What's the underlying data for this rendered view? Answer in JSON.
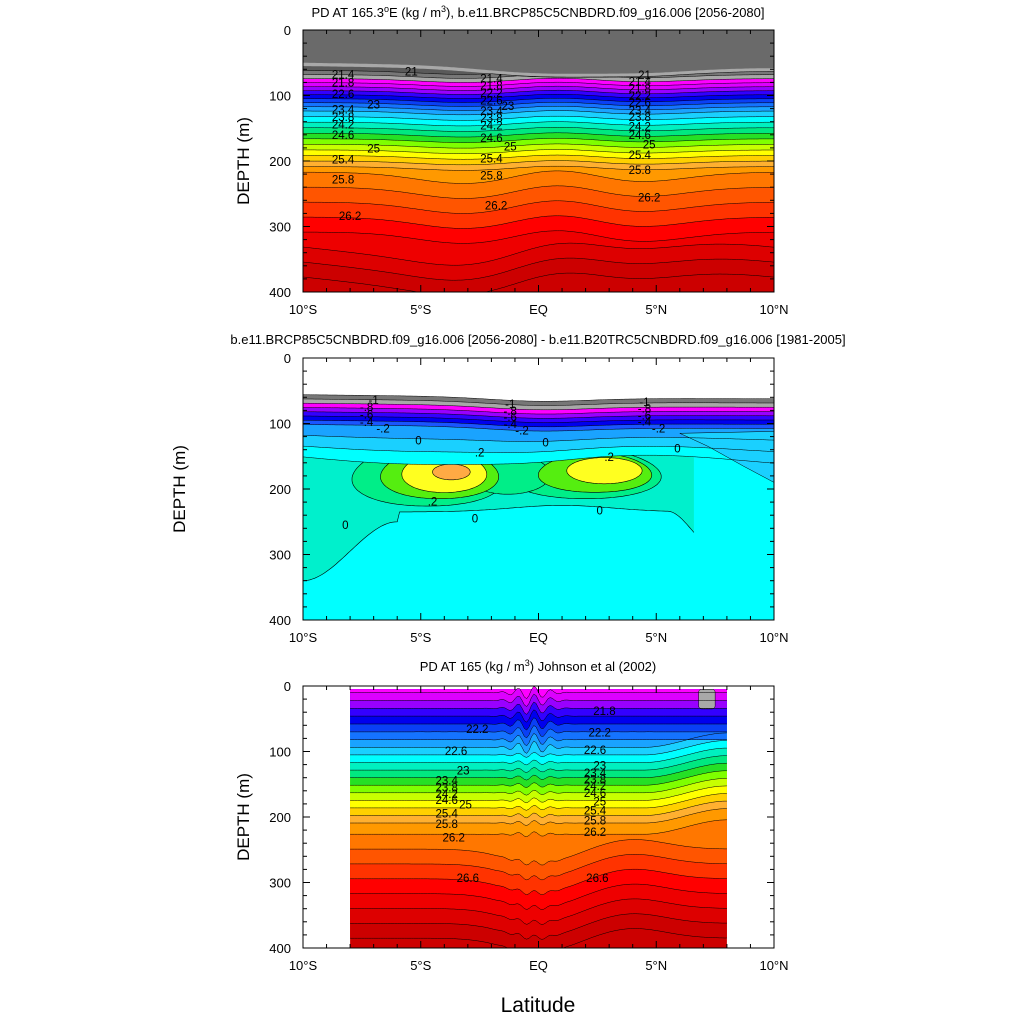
{
  "chart_data": [
    {
      "type": "contour",
      "title": "PD AT 165.3°E (kg / m³), b.e11.BRCP85C5CNBDRD.f09_g16.006 [2056-2080]",
      "title_parts": {
        "pre": "PD AT 165.3",
        "sup1": "o",
        "mid": "E (kg / m",
        "sup2": "3",
        "post": "), b.e11.BRCP85C5CNBDRD.f09_g16.006 [2056-2080]"
      },
      "ylabel": "DEPTH (m)",
      "xlim": [
        -10,
        10
      ],
      "ylim": [
        400,
        0
      ],
      "x_ticks": [
        "10°S",
        "5°S",
        "EQ",
        "5°N",
        "10°N"
      ],
      "y_ticks": [
        "0",
        "100",
        "200",
        "300",
        "400"
      ],
      "levels": [
        21,
        21.2,
        21.4,
        21.6,
        21.8,
        22,
        22.2,
        22.4,
        22.6,
        22.8,
        23,
        23.2,
        23.4,
        23.6,
        23.8,
        24,
        24.2,
        24.4,
        24.6,
        24.8,
        25,
        25.2,
        25.4,
        25.6,
        25.8,
        26,
        26.2,
        26.4,
        26.6
      ],
      "contour_labels": [
        {
          "lat": -8.3,
          "depth": 68,
          "text": "21.4"
        },
        {
          "lat": -5.4,
          "depth": 63,
          "text": "21"
        },
        {
          "lat": -8.3,
          "depth": 80,
          "text": "21.8"
        },
        {
          "lat": -8.3,
          "depth": 98,
          "text": "22.6"
        },
        {
          "lat": -8.3,
          "depth": 121,
          "text": "23.4"
        },
        {
          "lat": -7.0,
          "depth": 114,
          "text": "23"
        },
        {
          "lat": -8.3,
          "depth": 133,
          "text": "23.8"
        },
        {
          "lat": -8.3,
          "depth": 144,
          "text": "24.2"
        },
        {
          "lat": -8.3,
          "depth": 160,
          "text": "24.6"
        },
        {
          "lat": -7.0,
          "depth": 181,
          "text": "25"
        },
        {
          "lat": -8.3,
          "depth": 198,
          "text": "25.4"
        },
        {
          "lat": -8.3,
          "depth": 228,
          "text": "25.8"
        },
        {
          "lat": -8.0,
          "depth": 284,
          "text": "26.2"
        },
        {
          "lat": -2.0,
          "depth": 74,
          "text": "21.4"
        },
        {
          "lat": -2.0,
          "depth": 85,
          "text": "21.8"
        },
        {
          "lat": -2.0,
          "depth": 96,
          "text": "22.2"
        },
        {
          "lat": -2.0,
          "depth": 108,
          "text": "22.6"
        },
        {
          "lat": -1.3,
          "depth": 116,
          "text": "23"
        },
        {
          "lat": -2.0,
          "depth": 124,
          "text": "23.4"
        },
        {
          "lat": -2.0,
          "depth": 134,
          "text": "23.8"
        },
        {
          "lat": -2.0,
          "depth": 146,
          "text": "24.2"
        },
        {
          "lat": -2.0,
          "depth": 165,
          "text": "24.6"
        },
        {
          "lat": -1.2,
          "depth": 178,
          "text": "25"
        },
        {
          "lat": -2.0,
          "depth": 196,
          "text": "25.4"
        },
        {
          "lat": -2.0,
          "depth": 222,
          "text": "25.8"
        },
        {
          "lat": -1.8,
          "depth": 268,
          "text": "26.2"
        },
        {
          "lat": 4.5,
          "depth": 69,
          "text": "21"
        },
        {
          "lat": 4.3,
          "depth": 79,
          "text": "21.4"
        },
        {
          "lat": 4.3,
          "depth": 89,
          "text": "21.8"
        },
        {
          "lat": 4.3,
          "depth": 101,
          "text": "22.2"
        },
        {
          "lat": 4.3,
          "depth": 111,
          "text": "22.6"
        },
        {
          "lat": 4.3,
          "depth": 123,
          "text": "23.4"
        },
        {
          "lat": 4.3,
          "depth": 133,
          "text": "23.8"
        },
        {
          "lat": 4.3,
          "depth": 147,
          "text": "24.2"
        },
        {
          "lat": 4.3,
          "depth": 160,
          "text": "24.6"
        },
        {
          "lat": 4.7,
          "depth": 175,
          "text": "25"
        },
        {
          "lat": 4.3,
          "depth": 191,
          "text": "25.4"
        },
        {
          "lat": 4.3,
          "depth": 214,
          "text": "25.8"
        },
        {
          "lat": 4.7,
          "depth": 256,
          "text": "26.2"
        }
      ]
    },
    {
      "type": "contour",
      "title": "b.e11.BRCP85C5CNBDRD.f09_g16.006 [2056-2080] - b.e11.B20TRC5CNBDRD.f09_g16.006 [1981-2005]",
      "ylabel": "DEPTH (m)",
      "xlim": [
        -10,
        10
      ],
      "ylim": [
        400,
        0
      ],
      "x_ticks": [
        "10°S",
        "5°S",
        "EQ",
        "5°N",
        "10°N"
      ],
      "y_ticks": [
        "0",
        "100",
        "200",
        "300",
        "400"
      ],
      "contour_labels": [
        {
          "lat": -7.0,
          "depth": 64,
          "text": "-1"
        },
        {
          "lat": -7.3,
          "depth": 75,
          "text": "-.8"
        },
        {
          "lat": -7.3,
          "depth": 86,
          "text": "-.6"
        },
        {
          "lat": -7.3,
          "depth": 98,
          "text": "-.4"
        },
        {
          "lat": -6.6,
          "depth": 108,
          "text": "-.2"
        },
        {
          "lat": -5.1,
          "depth": 126,
          "text": "0"
        },
        {
          "lat": -2.5,
          "depth": 144,
          "text": ".2"
        },
        {
          "lat": 3.0,
          "depth": 151,
          "text": ".2"
        },
        {
          "lat": -4.5,
          "depth": 219,
          "text": ".2"
        },
        {
          "lat": -8.2,
          "depth": 255,
          "text": "0"
        },
        {
          "lat": -2.7,
          "depth": 245,
          "text": "0"
        },
        {
          "lat": 2.6,
          "depth": 233,
          "text": "0"
        },
        {
          "lat": 0.3,
          "depth": 129,
          "text": "0"
        },
        {
          "lat": 5.9,
          "depth": 138,
          "text": "0"
        },
        {
          "lat": -1.2,
          "depth": 70,
          "text": "-1"
        },
        {
          "lat": -1.2,
          "depth": 81,
          "text": "-.8"
        },
        {
          "lat": -1.2,
          "depth": 90,
          "text": "-.6"
        },
        {
          "lat": -1.2,
          "depth": 101,
          "text": "-.4"
        },
        {
          "lat": -0.7,
          "depth": 111,
          "text": "-.2"
        },
        {
          "lat": 4.5,
          "depth": 67,
          "text": "-1"
        },
        {
          "lat": 4.5,
          "depth": 77,
          "text": "-.8"
        },
        {
          "lat": 4.5,
          "depth": 88,
          "text": "-.6"
        },
        {
          "lat": 4.5,
          "depth": 97,
          "text": "-.4"
        },
        {
          "lat": 5.1,
          "depth": 108,
          "text": "-.2"
        }
      ]
    },
    {
      "type": "contour",
      "title": "PD AT 165 (kg / m³) Johnson et al (2002)",
      "title_parts": {
        "pre": "PD AT 165 (kg / m",
        "sup2": "3",
        "post": ") Johnson et al (2002)"
      },
      "ylabel": "DEPTH (m)",
      "xlabel": "Latitude",
      "xlim": [
        -10,
        10
      ],
      "ylim": [
        400,
        0
      ],
      "x_ticks": [
        "10°S",
        "5°S",
        "EQ",
        "5°N",
        "10°N"
      ],
      "y_ticks": [
        "0",
        "100",
        "200",
        "300",
        "400"
      ],
      "data_lat_range": [
        -8,
        8
      ],
      "contour_labels": [
        {
          "lat": 2.8,
          "depth": 38,
          "text": "21.8"
        },
        {
          "lat": -2.6,
          "depth": 66,
          "text": "22.2"
        },
        {
          "lat": 2.6,
          "depth": 71,
          "text": "22.2"
        },
        {
          "lat": -3.5,
          "depth": 99,
          "text": "22.6"
        },
        {
          "lat": 2.4,
          "depth": 98,
          "text": "22.6"
        },
        {
          "lat": -3.2,
          "depth": 129,
          "text": "23"
        },
        {
          "lat": 2.6,
          "depth": 121,
          "text": "23"
        },
        {
          "lat": -3.9,
          "depth": 144,
          "text": "23.4"
        },
        {
          "lat": -3.9,
          "depth": 155,
          "text": "23.8"
        },
        {
          "lat": -3.9,
          "depth": 165,
          "text": "24.2"
        },
        {
          "lat": -3.9,
          "depth": 174,
          "text": "24.6"
        },
        {
          "lat": -3.1,
          "depth": 181,
          "text": "25"
        },
        {
          "lat": -3.9,
          "depth": 195,
          "text": "25.4"
        },
        {
          "lat": -3.9,
          "depth": 211,
          "text": "25.8"
        },
        {
          "lat": -3.6,
          "depth": 231,
          "text": "26.2"
        },
        {
          "lat": 2.4,
          "depth": 133,
          "text": "23.4"
        },
        {
          "lat": 2.4,
          "depth": 143,
          "text": "23.8"
        },
        {
          "lat": 2.4,
          "depth": 153,
          "text": "24.2"
        },
        {
          "lat": 2.4,
          "depth": 163,
          "text": "24.6"
        },
        {
          "lat": 2.6,
          "depth": 176,
          "text": "25"
        },
        {
          "lat": 2.4,
          "depth": 190,
          "text": "25.4"
        },
        {
          "lat": 2.4,
          "depth": 205,
          "text": "25.8"
        },
        {
          "lat": 2.4,
          "depth": 223,
          "text": "26.2"
        },
        {
          "lat": -3.0,
          "depth": 293,
          "text": "26.6"
        },
        {
          "lat": 2.5,
          "depth": 293,
          "text": "26.6"
        }
      ]
    }
  ],
  "palettes": {
    "density": [
      "#5a5a5a",
      "#777777",
      "#a8a8a8",
      "#ff00ff",
      "#dd00ff",
      "#9900ff",
      "#3300ff",
      "#0000ee",
      "#0a40f5",
      "#1573ff",
      "#1aa3ff",
      "#1ad0ff",
      "#00ffff",
      "#00f0c0",
      "#00e880",
      "#25e025",
      "#7fff00",
      "#c8ff00",
      "#ffff00",
      "#ffd000",
      "#ffb030",
      "#ff9900",
      "#ff7700",
      "#ff5500",
      "#ff3300",
      "#ff0000",
      "#ee0000",
      "#dd0000",
      "#cc0000"
    ],
    "difference": {
      "neg": [
        "#5a5a5a",
        "#777777",
        "#a8a8a8",
        "#ff00ff",
        "#9900ff",
        "#3300ff",
        "#0000ee",
        "#1a55ff",
        "#1aa3ff",
        "#1ad0ff",
        "#00ffff"
      ],
      "zero": "#00ffee",
      "pos1": "#00ee88",
      "pos2": "#55ee10",
      "pos3": "#ffff20",
      "pos4": "#ffaa44"
    }
  }
}
